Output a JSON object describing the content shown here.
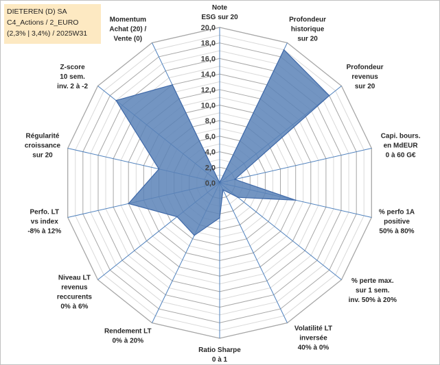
{
  "title": {
    "line1": "DIETEREN (D) SA",
    "line2": "C4_Actions / 2_EURO",
    "line3": "(2,3% | 3,4%) / 2025W31"
  },
  "colors": {
    "fill": "#5b82b7",
    "stroke": "#3e68a8",
    "spoke": "#4f81bd",
    "grid_major": "#a6a6a6",
    "grid_minor": "#d9d9d9",
    "title_bg": "#fde9c2"
  },
  "chart_data": {
    "type": "radar",
    "rmin": 0,
    "rmax": 20,
    "major_step": 2,
    "ticks": [
      "0,0",
      "2,0",
      "4,0",
      "6,0",
      "8,0",
      "10,0",
      "12,0",
      "14,0",
      "16,0",
      "18,0",
      "20,0"
    ],
    "axes": [
      {
        "label": [
          "Note",
          "ESG sur 20"
        ],
        "value": 0
      },
      {
        "label": [
          "Profondeur",
          "historique",
          "sur 20"
        ],
        "value": 19.0
      },
      {
        "label": [
          "Profondeur",
          "revenus",
          "sur 20"
        ],
        "value": 18.0
      },
      {
        "label": [
          "Capi. bours.",
          "en MdEUR",
          "0 à 60 G€"
        ],
        "value": 2.0
      },
      {
        "label": [
          "% perfo 1A",
          "positive",
          "50% à 80%"
        ],
        "value": 10.0
      },
      {
        "label": [
          "% perte max.",
          "sur 1 sem.",
          "inv. 50% à 20%"
        ],
        "value": 3.0
      },
      {
        "label": [
          "Volatilité LT",
          "inversée",
          "40% à 0%"
        ],
        "value": 1.0
      },
      {
        "label": [
          "Ratio Sharpe",
          "0 à 1"
        ],
        "value": 4.5
      },
      {
        "label": [
          "Rendement LT",
          "0% à 20%"
        ],
        "value": 7.5
      },
      {
        "label": [
          "Niveau LT",
          "revenus",
          "reccurents",
          "0% à 6%"
        ],
        "value": 7.0
      },
      {
        "label": [
          "Perfo. LT",
          "vs index",
          "-8% à 12%"
        ],
        "value": 12.0
      },
      {
        "label": [
          "Régularité",
          "croissance",
          "sur 20"
        ],
        "value": 8.0
      },
      {
        "label": [
          "Z-score",
          "10 sem.",
          "inv. 2 à -2"
        ],
        "value": 17.0
      },
      {
        "label": [
          "Momentum",
          "Achat (20) /",
          "Vente (0)"
        ],
        "value": 14.0
      }
    ]
  }
}
